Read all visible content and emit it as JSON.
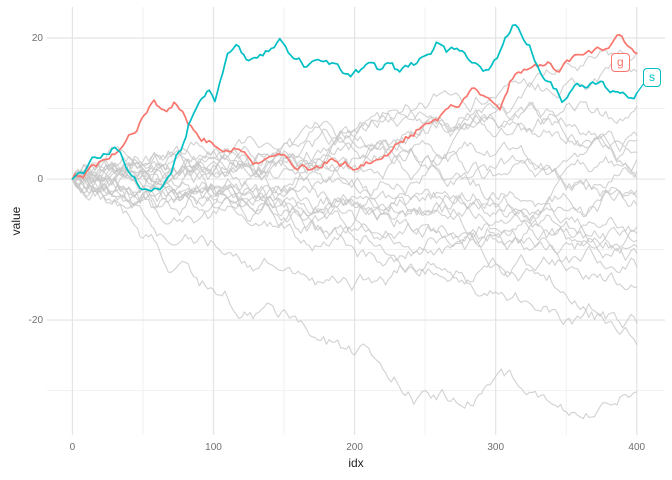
{
  "axes": {
    "x": {
      "label": "idx",
      "tick_labels": [
        "0",
        "100",
        "200",
        "300",
        "400"
      ],
      "tick_values": [
        0,
        100,
        200,
        300,
        400
      ]
    },
    "y": {
      "label": "value",
      "tick_labels": [
        "20",
        "0",
        "-20"
      ],
      "tick_values": [
        20,
        0,
        -20
      ]
    }
  },
  "colors": {
    "highlight_g": "#F8766D",
    "highlight_s": "#00BFC4",
    "walk": "#c6c6c6",
    "grid_major": "#e4e4e4",
    "grid_minor": "#f1f1f1",
    "tick_text": "#6f6f6f",
    "axis_title": "#1f1f1f",
    "background": "#ffffff"
  },
  "chart_data": {
    "type": "line",
    "title": "",
    "xlabel": "idx",
    "ylabel": "value",
    "x_range": [
      -18,
      420
    ],
    "y_range": [
      -36.3,
      24.4
    ],
    "legend": "none",
    "grid": {
      "x_major": [
        0,
        100,
        200,
        300,
        400
      ],
      "x_minor": [
        50,
        150,
        250,
        350
      ],
      "y_major": [
        20,
        0,
        -20
      ],
      "y_minor": [
        10,
        -10,
        -30
      ]
    },
    "noise_seed": 7,
    "highlighted": [
      {
        "name": "g",
        "color": "#F8766D",
        "x": [
          0,
          15,
          30,
          44,
          51,
          58,
          65,
          72,
          80,
          88,
          95,
          105,
          120,
          130,
          140,
          152,
          163,
          175,
          184,
          199,
          210,
          225,
          240,
          255,
          272,
          285,
          295,
          303,
          310,
          326,
          337,
          345,
          356,
          372,
          386,
          393,
          400
        ],
        "y": [
          0,
          2,
          3.5,
          6.5,
          9.1,
          11.2,
          9.8,
          10.9,
          8.8,
          6.5,
          5.2,
          4.1,
          3.9,
          2.3,
          3.2,
          3.1,
          2.0,
          1.6,
          2.9,
          1.3,
          2.2,
          3.7,
          6.2,
          8.2,
          10.2,
          12.9,
          11.5,
          9.8,
          13.8,
          15.9,
          16.6,
          15.2,
          17.6,
          18.7,
          20.4,
          19,
          17.8
        ]
      },
      {
        "name": "s",
        "color": "#00BFC4",
        "x": [
          0,
          10,
          20,
          30,
          40,
          50,
          62,
          70,
          77,
          84,
          92,
          97,
          101,
          110,
          118,
          125,
          135,
          147,
          155,
          166,
          180,
          190,
          199,
          210,
          218,
          225,
          232,
          240,
          250,
          258,
          265,
          278,
          285,
          295,
          305,
          312,
          324,
          335,
          347,
          356,
          365,
          376,
          383,
          390,
          396,
          400
        ],
        "y": [
          0,
          1.5,
          3,
          4.5,
          1,
          -1.5,
          -1.5,
          0.8,
          4.1,
          8.4,
          11.5,
          12.6,
          11,
          17.8,
          18.8,
          16.8,
          17.5,
          19.9,
          17.5,
          15.9,
          16.8,
          15.5,
          15,
          16.5,
          15.5,
          16.4,
          15.2,
          16.5,
          17.5,
          19.4,
          18,
          17.9,
          16.5,
          15.5,
          19,
          21.8,
          19,
          14,
          10.9,
          13.3,
          13,
          13.8,
          12.5,
          12.3,
          11.5,
          12.2
        ]
      }
    ],
    "walk_x": [
      0,
      50,
      100,
      150,
      200,
      250,
      300,
      350,
      400
    ],
    "walks": [
      {
        "name": "w01",
        "y": [
          0,
          1.5,
          2.5,
          5,
          7,
          10,
          11.5,
          16.5,
          18
        ]
      },
      {
        "name": "w02",
        "y": [
          0,
          2,
          4,
          3,
          6,
          8,
          10,
          13.5,
          15.2
        ]
      },
      {
        "name": "w03",
        "y": [
          0,
          1,
          3,
          5,
          7,
          9,
          8,
          10.5,
          10.3
        ]
      },
      {
        "name": "w04",
        "y": [
          0,
          2.5,
          1,
          3.5,
          6,
          8,
          9.5,
          7.5,
          6.2
        ]
      },
      {
        "name": "w05",
        "y": [
          0,
          0.5,
          2,
          4,
          3,
          6.5,
          8,
          6,
          5.5
        ]
      },
      {
        "name": "w06",
        "y": [
          0,
          2,
          4,
          2.5,
          5,
          3,
          6,
          5,
          3.8
        ]
      },
      {
        "name": "w07",
        "y": [
          0,
          -1,
          0.5,
          3,
          2,
          5,
          3.5,
          1.5,
          2.7
        ]
      },
      {
        "name": "w08",
        "y": [
          0,
          1,
          3,
          1.5,
          4,
          2,
          0.5,
          2.5,
          1
        ]
      },
      {
        "name": "w09",
        "y": [
          0,
          -2,
          -3.5,
          -1,
          1,
          3,
          1.5,
          -1.5,
          0.1
        ]
      },
      {
        "name": "w10",
        "y": [
          0,
          2,
          0.5,
          2,
          -1,
          0.5,
          -2.5,
          -1,
          -1.6
        ]
      },
      {
        "name": "w11",
        "y": [
          0,
          -1,
          1,
          -1.5,
          -3.5,
          -1.5,
          -4,
          -4.5,
          -2.6
        ]
      },
      {
        "name": "w12",
        "y": [
          0,
          1.5,
          -1,
          -2.5,
          -0.5,
          -3,
          -5,
          -2.5,
          -3.7
        ]
      },
      {
        "name": "w13",
        "y": [
          0,
          -2.5,
          -1,
          -4,
          -2.5,
          -4.5,
          -3.5,
          -6,
          -6.8
        ]
      },
      {
        "name": "w14",
        "y": [
          0,
          0.5,
          -2,
          -1,
          -3.5,
          -5,
          -7,
          -5.5,
          -7.7
        ]
      },
      {
        "name": "w15",
        "y": [
          0,
          -1.5,
          -2.5,
          -5.5,
          -4,
          -6.5,
          -8,
          -7,
          -8.7
        ]
      },
      {
        "name": "w16",
        "y": [
          0,
          -2,
          -4.5,
          -3,
          -5.5,
          -7.5,
          -6,
          -8.5,
          -9.6
        ]
      },
      {
        "name": "w17",
        "y": [
          0,
          1,
          -1.5,
          -3,
          -6,
          -5,
          -8.5,
          -9,
          -10.5
        ]
      },
      {
        "name": "w18",
        "y": [
          0,
          -3,
          -2,
          -4.5,
          -7,
          -9.5,
          -8,
          -11,
          -12.5
        ]
      },
      {
        "name": "w19",
        "y": [
          0,
          -1,
          -3,
          -6,
          -8.5,
          -10,
          -12,
          -13,
          -15.3
        ]
      },
      {
        "name": "w20",
        "y": [
          0,
          -2.5,
          -4,
          -7,
          -10,
          -12.5,
          -12,
          -16.5,
          -20.4
        ]
      },
      {
        "name": "w21",
        "y": [
          0,
          -4.8,
          -9,
          -13,
          -15,
          -13.5,
          -16,
          -20,
          -23.5
        ]
      },
      {
        "name": "w22",
        "y": [
          0,
          -8.4,
          -15.7,
          -18.5,
          -25,
          -30,
          -28,
          -33,
          -30.2
        ]
      }
    ]
  }
}
